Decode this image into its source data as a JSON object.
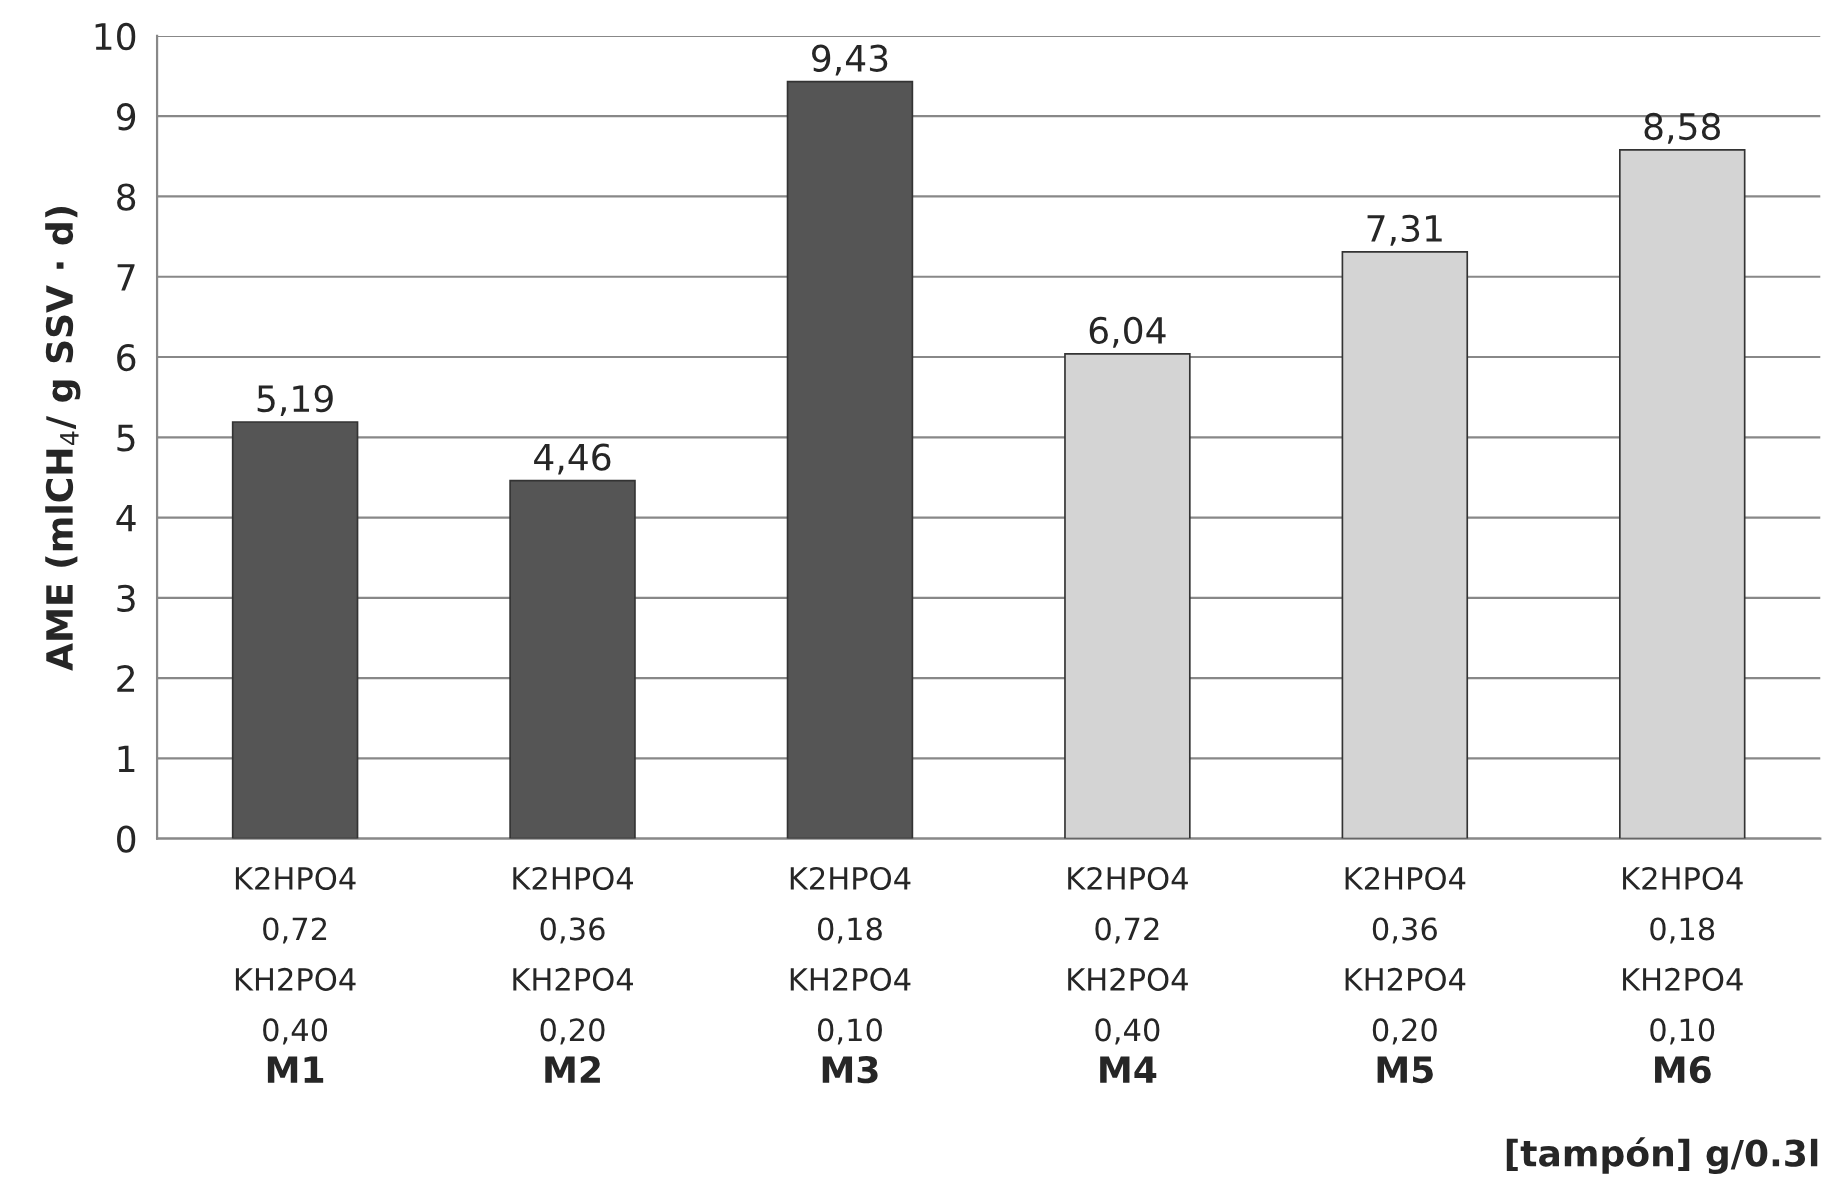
{
  "chart_data": {
    "type": "bar",
    "categories": [
      "K2HPO4\n0,72\nKH2PO4\n0,40",
      "K2HPO4\n0,36\nKH2PO4\n0,20",
      "K2HPO4\n0,18\nKH2PO4\n0,10",
      "K2HPO4\n0,72\nKH2PO4\n0,40",
      "K2HPO4\n0,36\nKH2PO4\n0,20",
      "K2HPO4\n0,18\nKH2PO4\n0,10"
    ],
    "values": [
      5.19,
      4.46,
      9.43,
      6.04,
      7.31,
      8.58
    ],
    "colors": [
      "#555555",
      "#555555",
      "#555555",
      "#d4d4d4",
      "#d4d4d4",
      "#d4d4d4"
    ],
    "value_labels": [
      "5,19",
      "4,46",
      "9,43",
      "6,04",
      "7,31",
      "8,58"
    ],
    "ylabel": "AME (mlCH$_{4}$/ g SSV · d)",
    "xlabel": "[tampón] g/0.3l",
    "annotations": [
      "M1",
      "M2",
      "M3",
      "M4",
      "M5",
      "M6"
    ],
    "ylim": [
      0,
      10
    ],
    "yticks": [
      0,
      1,
      2,
      3,
      4,
      5,
      6,
      7,
      8,
      9,
      10
    ],
    "grid": "y",
    "legend": false
  }
}
